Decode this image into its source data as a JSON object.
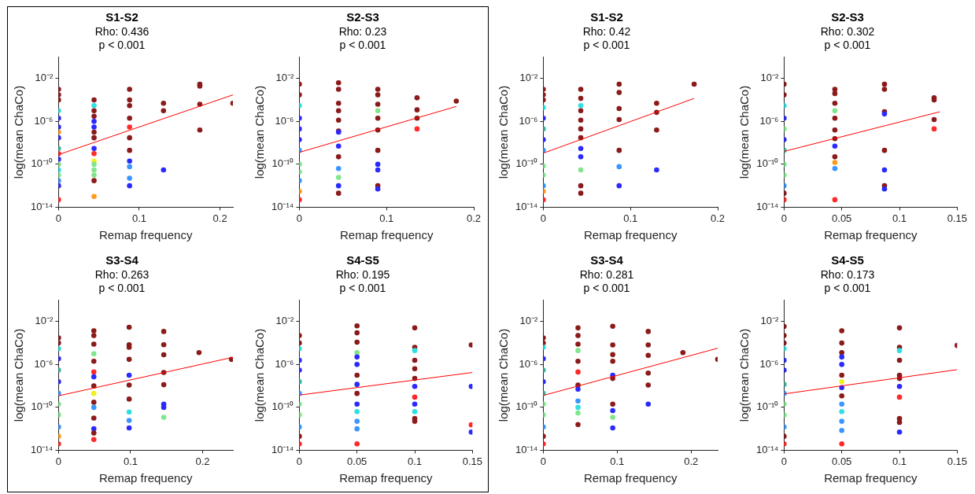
{
  "chart_data": [
    {
      "type": "scatter",
      "title": "S1-S2",
      "annotations": [
        "Rho: 0.436",
        "p < 0.001"
      ],
      "marker": "circle",
      "xlabel": "Remap frequency",
      "ylabel": "log(mean ChaCo)",
      "log": "y",
      "xlim": [
        0,
        0.216
      ],
      "xticks": [
        0,
        0.1,
        0.2
      ],
      "ylim": [
        1e-14,
        1
      ],
      "yticks": [
        {
          "value": 1e-14,
          "label": "10⁻¹⁴"
        },
        {
          "value": 1e-10,
          "label": "10⁻¹⁰"
        },
        {
          "value": 1e-06,
          "label": "10⁻⁶"
        },
        {
          "value": 0.01,
          "label": "10⁻²"
        }
      ],
      "series": [
        {
          "type": "scatter",
          "x": [
            0,
            0,
            0,
            0,
            0,
            0,
            0,
            0,
            0,
            0,
            0,
            0,
            0,
            0,
            0,
            0,
            0,
            0.044,
            0.044,
            0.044,
            0.044,
            0.044,
            0.044,
            0.044,
            0.044,
            0.044,
            0.044,
            0.044,
            0.044,
            0.044,
            0.044,
            0.044,
            0.044,
            0.088,
            0.088,
            0.088,
            0.088,
            0.088,
            0.088,
            0.088,
            0.088,
            0.088,
            0.088,
            0.088,
            0.13,
            0.13,
            0.13,
            0.175,
            0.175,
            0.175,
            0.175,
            0.216
          ],
          "values": [
            0.001,
            0.0003,
            0.0001,
            1e-05,
            2e-06,
            3e-07,
            1e-07,
            3e-08,
            3e-09,
            1e-09,
            3e-10,
            1e-10,
            3e-11,
            1e-11,
            3e-12,
            1e-12,
            5e-14,
            0.0001,
            3e-05,
            1e-05,
            3e-06,
            1e-06,
            3e-07,
            1e-07,
            3e-08,
            3e-09,
            1e-09,
            2e-10,
            1e-10,
            3e-11,
            1e-11,
            3e-12,
            1e-13,
            0.001,
            0.0001,
            3e-05,
            2e-06,
            3e-07,
            3e-08,
            2e-09,
            2e-10,
            6e-11,
            5e-12,
            1e-12,
            5e-05,
            1e-05,
            3e-11,
            0.003,
            0.002,
            4e-05,
            1.6e-07,
            5e-05
          ],
          "colors": [
            "#8b1a1a",
            "#8b1a1a",
            "#8b1a1a",
            "#30e0e0",
            "#2a2aff",
            "#2a2aff",
            "#ff9a1a",
            "#2a2aff",
            "#40b4a0",
            "#ff2a2a",
            "#2a2aff",
            "#80e68c",
            "#30e0e0",
            "#80e68c",
            "#3a96ff",
            "#2a2aff",
            "#ff2a2a",
            "#8b1a1a",
            "#30e0e0",
            "#8b1a1a",
            "#8b1a1a",
            "#2a2aff",
            "#2a2aff",
            "#8b1a1a",
            "#8b1a1a",
            "#2a2aff",
            "#ff2a2a",
            "#f0f020",
            "#80e68c",
            "#80e68c",
            "#80e68c",
            "#8b1a1a",
            "#ff9a1a",
            "#8b1a1a",
            "#8b1a1a",
            "#8b1a1a",
            "#8b1a1a",
            "#ff2a2a",
            "#8b1a1a",
            "#8b1a1a",
            "#2a2aff",
            "#3a96ff",
            "#3a96ff",
            "#2a2aff",
            "#8b1a1a",
            "#8b1a1a",
            "#2a2aff",
            "#8b1a1a",
            "#8b1a1a",
            "#8b1a1a",
            "#8b1a1a",
            "#8b1a1a"
          ]
        },
        {
          "type": "line",
          "marker": "none",
          "color": "#ff0000",
          "x": [
            0,
            0.216
          ],
          "values": [
            8e-10,
            0.0003
          ]
        }
      ]
    },
    {
      "type": "scatter",
      "title": "S2-S3",
      "annotations": [
        "Rho: 0.23",
        "p < 0.001"
      ],
      "marker": "circle",
      "xlabel": "Remap frequency",
      "ylabel": "log(mean ChaCo)",
      "log": "y",
      "xlim": [
        0,
        0.2
      ],
      "xticks": [
        0,
        0.1,
        0.2
      ],
      "ylim": [
        1e-14,
        1
      ],
      "yticks": [
        {
          "value": 1e-14,
          "label": "10⁻¹⁴"
        },
        {
          "value": 1e-10,
          "label": "10⁻¹⁰"
        },
        {
          "value": 1e-06,
          "label": "10⁻⁶"
        },
        {
          "value": 0.01,
          "label": "10⁻²"
        }
      ],
      "series": [
        {
          "type": "scatter",
          "x": [
            0,
            0,
            0,
            0,
            0,
            0,
            0,
            0,
            0,
            0,
            0,
            0,
            0.045,
            0.045,
            0.045,
            0.045,
            0.045,
            0.045,
            0.045,
            0.045,
            0.045,
            0.045,
            0.045,
            0.045,
            0.045,
            0.09,
            0.09,
            0.09,
            0.09,
            0.09,
            0.09,
            0.09,
            0.09,
            0.09,
            0.09,
            0.09,
            0.135,
            0.135,
            0.135,
            0.135,
            0.18
          ],
          "values": [
            0.003,
            0.0003,
            3e-05,
            2e-06,
            2e-07,
            2e-08,
            2e-09,
            1e-10,
            2e-11,
            3e-12,
            3e-13,
            5e-14,
            0.004,
            0.001,
            5e-05,
            1e-05,
            1.3e-06,
            1.3e-07,
            1e-07,
            5e-09,
            5e-10,
            4e-11,
            6e-12,
            1e-12,
            2e-13,
            0.001,
            0.0003,
            4e-05,
            1e-05,
            2e-06,
            1.6e-07,
            2e-09,
            1e-10,
            3e-11,
            1e-12,
            5e-13,
            0.00016,
            1.2e-05,
            2e-06,
            2e-07,
            8e-05
          ],
          "colors": [
            "#8b1a1a",
            "#8b1a1a",
            "#30e0e0",
            "#2a2aff",
            "#2a2aff",
            "#2a2aff",
            "#3a96ff",
            "#80e68c",
            "#80e68c",
            "#3a96ff",
            "#ff9a1a",
            "#ff2a2a",
            "#8b1a1a",
            "#8b1a1a",
            "#8b1a1a",
            "#8b1a1a",
            "#8b1a1a",
            "#8b1a1a",
            "#2a2aff",
            "#2a2aff",
            "#8b1a1a",
            "#3a96ff",
            "#80e68c",
            "#2a2aff",
            "#8b1a1a",
            "#8b1a1a",
            "#8b1a1a",
            "#8b1a1a",
            "#80e68c",
            "#8b1a1a",
            "#8b1a1a",
            "#8b1a1a",
            "#2a2aff",
            "#2a2aff",
            "#8b1a1a",
            "#2a2aff",
            "#8b1a1a",
            "#8b1a1a",
            "#8b1a1a",
            "#ff2a2a",
            "#8b1a1a"
          ]
        },
        {
          "type": "line",
          "marker": "none",
          "color": "#ff0000",
          "x": [
            0,
            0.18
          ],
          "values": [
            1.3e-09,
            2.5e-05
          ]
        }
      ]
    },
    {
      "type": "scatter",
      "title": "S1-S2",
      "annotations": [
        "Rho: 0.42",
        "p < 0.001"
      ],
      "marker": "circle",
      "xlabel": "Remap frequency",
      "ylabel": "log(mean ChaCo)",
      "log": "y",
      "xlim": [
        0,
        0.2
      ],
      "xticks": [
        0,
        0.1,
        0.2
      ],
      "ylim": [
        1e-14,
        1
      ],
      "yticks": [
        {
          "value": 1e-14,
          "label": "10⁻¹⁴"
        },
        {
          "value": 1e-10,
          "label": "10⁻¹⁰"
        },
        {
          "value": 1e-06,
          "label": "10⁻⁶"
        },
        {
          "value": 0.01,
          "label": "10⁻²"
        }
      ],
      "series": [
        {
          "type": "scatter",
          "x": [
            0,
            0,
            0,
            0,
            0,
            0,
            0,
            0,
            0,
            0,
            0,
            0,
            0,
            0.043,
            0.043,
            0.043,
            0.043,
            0.043,
            0.043,
            0.043,
            0.043,
            0.043,
            0.043,
            0.043,
            0.043,
            0.087,
            0.087,
            0.087,
            0.087,
            0.087,
            0.087,
            0.087,
            0.13,
            0.13,
            0.13,
            0.13,
            0.173
          ],
          "values": [
            0.001,
            0.0003,
            0.0001,
            2e-05,
            2e-06,
            2e-07,
            2e-08,
            2e-09,
            7e-11,
            1e-11,
            1e-12,
            3e-13,
            5e-14,
            0.001,
            0.00014,
            3e-05,
            1e-05,
            1.3e-06,
            2e-07,
            3e-08,
            3e-09,
            5e-10,
            3e-11,
            1e-12,
            2e-13,
            0.003,
            0.0005,
            1.6e-05,
            1.5e-06,
            2e-09,
            6e-11,
            1e-12,
            5e-05,
            7e-06,
            1.6e-07,
            3e-11,
            0.003
          ],
          "colors": [
            "#8b1a1a",
            "#8b1a1a",
            "#8b1a1a",
            "#30e0e0",
            "#2a2aff",
            "#40b4a0",
            "#2a2aff",
            "#3a96ff",
            "#80e68c",
            "#80e68c",
            "#3a96ff",
            "#ff9a1a",
            "#ff2a2a",
            "#8b1a1a",
            "#8b1a1a",
            "#30e0e0",
            "#8b1a1a",
            "#8b1a1a",
            "#8b1a1a",
            "#8b1a1a",
            "#2a2aff",
            "#2a2aff",
            "#80e68c",
            "#8b1a1a",
            "#8b1a1a",
            "#8b1a1a",
            "#8b1a1a",
            "#8b1a1a",
            "#8b1a1a",
            "#8b1a1a",
            "#3a96ff",
            "#2a2aff",
            "#8b1a1a",
            "#8b1a1a",
            "#8b1a1a",
            "#2a2aff",
            "#8b1a1a"
          ]
        },
        {
          "type": "line",
          "marker": "none",
          "color": "#ff0000",
          "x": [
            0,
            0.173
          ],
          "values": [
            1.1e-09,
            0.00014
          ]
        }
      ]
    },
    {
      "type": "scatter",
      "title": "S2-S3",
      "annotations": [
        "Rho: 0.302",
        "p < 0.001"
      ],
      "marker": "circle",
      "xlabel": "Remap frequency",
      "ylabel": "log(mean ChaCo)",
      "log": "y",
      "xlim": [
        0,
        0.15
      ],
      "xticks": [
        0,
        0.05,
        0.1,
        0.15
      ],
      "ylim": [
        1e-14,
        1
      ],
      "yticks": [
        {
          "value": 1e-14,
          "label": "10⁻¹⁴"
        },
        {
          "value": 1e-10,
          "label": "10⁻¹⁰"
        },
        {
          "value": 1e-06,
          "label": "10⁻⁶"
        },
        {
          "value": 0.01,
          "label": "10⁻²"
        }
      ],
      "series": [
        {
          "type": "scatter",
          "x": [
            0,
            0,
            0,
            0,
            0,
            0,
            0,
            0,
            0,
            0,
            0,
            0,
            0.044,
            0.044,
            0.044,
            0.044,
            0.044,
            0.044,
            0.044,
            0.044,
            0.044,
            0.044,
            0.044,
            0.044,
            0.087,
            0.087,
            0.087,
            0.087,
            0.087,
            0.087,
            0.087,
            0.087,
            0.13,
            0.13,
            0.13,
            0.13
          ],
          "values": [
            0.003,
            0.0003,
            3e-05,
            2e-06,
            2e-07,
            2e-08,
            2e-09,
            1e-10,
            1e-11,
            1e-12,
            2e-13,
            5e-14,
            0.001,
            0.0004,
            5e-05,
            1e-05,
            2e-06,
            1.6e-07,
            2.5e-08,
            5e-09,
            5e-10,
            1.5e-10,
            4e-11,
            5e-14,
            0.003,
            0.001,
            8e-06,
            5e-06,
            2e-09,
            3e-11,
            1e-12,
            5e-13,
            0.00016,
            0.0001,
            1.5e-06,
            2e-07
          ],
          "colors": [
            "#8b1a1a",
            "#8b1a1a",
            "#30e0e0",
            "#2a2aff",
            "#80e68c",
            "#2a2aff",
            "#40b4a0",
            "#80e68c",
            "#80e68c",
            "#3a96ff",
            "#8b1a1a",
            "#ff2a2a",
            "#8b1a1a",
            "#8b1a1a",
            "#8b1a1a",
            "#80e68c",
            "#8b1a1a",
            "#8b1a1a",
            "#8b1a1a",
            "#2a2aff",
            "#8b1a1a",
            "#ff9a1a",
            "#3a96ff",
            "#ff2a2a",
            "#8b1a1a",
            "#8b1a1a",
            "#8b1a1a",
            "#2a2aff",
            "#8b1a1a",
            "#2a2aff",
            "#8b1a1a",
            "#2a2aff",
            "#8b1a1a",
            "#8b1a1a",
            "#8b1a1a",
            "#ff2a2a"
          ]
        },
        {
          "type": "line",
          "marker": "none",
          "color": "#ff0000",
          "x": [
            0,
            0.135
          ],
          "values": [
            1.6e-09,
            8e-06
          ]
        }
      ]
    },
    {
      "type": "scatter",
      "title": "S3-S4",
      "annotations": [
        "Rho: 0.263",
        "p < 0.001"
      ],
      "marker": "circle",
      "xlabel": "Remap frequency",
      "ylabel": "log(mean ChaCo)",
      "log": "y",
      "xlim": [
        0,
        0.242
      ],
      "xticks": [
        0,
        0.1,
        0.2
      ],
      "ylim": [
        1e-14,
        1
      ],
      "yticks": [
        {
          "value": 1e-14,
          "label": "10⁻¹⁴"
        },
        {
          "value": 1e-10,
          "label": "10⁻¹⁰"
        },
        {
          "value": 1e-06,
          "label": "10⁻⁶"
        },
        {
          "value": 0.01,
          "label": "10⁻²"
        }
      ],
      "series": [
        {
          "type": "scatter",
          "x": [
            0,
            0,
            0,
            0,
            0,
            0,
            0,
            0,
            0,
            0,
            0,
            0,
            0.049,
            0.049,
            0.049,
            0.049,
            0.049,
            0.049,
            0.049,
            0.049,
            0.049,
            0.049,
            0.049,
            0.049,
            0.049,
            0.049,
            0.049,
            0.098,
            0.098,
            0.098,
            0.098,
            0.098,
            0.098,
            0.098,
            0.098,
            0.098,
            0.098,
            0.146,
            0.146,
            0.146,
            0.146,
            0.146,
            0.146,
            0.146,
            0.146,
            0.195,
            0.24
          ],
          "values": [
            0.0003,
            0.0001,
            3e-05,
            3.5e-06,
            3e-07,
            2.5e-08,
            2e-09,
            2e-10,
            2e-11,
            1.5e-12,
            2e-13,
            4e-14,
            0.0014,
            0.0005,
            8e-05,
            1e-05,
            2e-06,
            2e-07,
            7e-08,
            1e-08,
            2e-09,
            3e-10,
            1e-10,
            1e-11,
            1e-12,
            4e-13,
            1e-13,
            0.003,
            7e-05,
            4e-05,
            3e-06,
            1e-07,
            1.2e-08,
            6e-10,
            3.7e-11,
            6e-12,
            1.2e-12,
            0.0012,
            7e-05,
            8e-06,
            1.8e-07,
            1.3e-08,
            2e-10,
            1e-10,
            1.2e-11,
            1.3e-05,
            3e-06
          ],
          "colors": [
            "#8b1a1a",
            "#8b1a1a",
            "#30e0e0",
            "#2a2aff",
            "#40b4a0",
            "#2a2aff",
            "#3a96ff",
            "#80e68c",
            "#80e68c",
            "#3a96ff",
            "#ff9a1a",
            "#ff2a2a",
            "#8b1a1a",
            "#8b1a1a",
            "#8b1a1a",
            "#80e68c",
            "#8b1a1a",
            "#ff2a2a",
            "#2a2aff",
            "#8b1a1a",
            "#f0f020",
            "#8b1a1a",
            "#3a96ff",
            "#8b1a1a",
            "#2a2aff",
            "#8b1a1a",
            "#ff2a2a",
            "#8b1a1a",
            "#8b1a1a",
            "#8b1a1a",
            "#8b1a1a",
            "#2a2aff",
            "#8b1a1a",
            "#8b1a1a",
            "#30e0e0",
            "#3a96ff",
            "#2a2aff",
            "#8b1a1a",
            "#8b1a1a",
            "#8b1a1a",
            "#8b1a1a",
            "#8b1a1a",
            "#2a2aff",
            "#2a2aff",
            "#80e68c",
            "#8b1a1a",
            "#8b1a1a"
          ]
        },
        {
          "type": "line",
          "marker": "none",
          "color": "#ff0000",
          "x": [
            0,
            0.242
          ],
          "values": [
            1.2e-09,
            4.7e-06
          ]
        }
      ]
    },
    {
      "type": "scatter",
      "title": "S4-S5",
      "annotations": [
        "Rho: 0.195",
        "p < 0.001"
      ],
      "marker": "circle",
      "xlabel": "Remap frequency",
      "ylabel": "log(mean ChaCo)",
      "log": "y",
      "xlim": [
        0,
        0.15
      ],
      "xticks": [
        0,
        0.05,
        0.1,
        0.15
      ],
      "ylim": [
        1e-14,
        1
      ],
      "yticks": [
        {
          "value": 1e-14,
          "label": "10⁻¹⁴"
        },
        {
          "value": 1e-10,
          "label": "10⁻¹⁰"
        },
        {
          "value": 1e-06,
          "label": "10⁻⁶"
        },
        {
          "value": 0.01,
          "label": "10⁻²"
        }
      ],
      "series": [
        {
          "type": "scatter",
          "x": [
            0,
            0,
            0,
            0,
            0,
            0,
            0,
            0,
            0,
            0,
            0,
            0,
            0.05,
            0.05,
            0.05,
            0.05,
            0.05,
            0.05,
            0.05,
            0.05,
            0.05,
            0.05,
            0.05,
            0.05,
            0.05,
            0.05,
            0.1,
            0.1,
            0.1,
            0.1,
            0.1,
            0.1,
            0.1,
            0.1,
            0.1,
            0.1,
            0.1,
            0.1,
            0.149,
            0.149,
            0.149,
            0.149
          ],
          "values": [
            0.0005,
            0.0001,
            3e-05,
            2.5e-06,
            3e-07,
            2.5e-08,
            2e-09,
            2e-10,
            2e-11,
            1.5e-12,
            2e-13,
            4e-14,
            0.004,
            0.0009,
            0.00012,
            1.3e-05,
            5e-06,
            1e-06,
            1e-07,
            1.4e-08,
            2e-09,
            2e-10,
            4e-11,
            5e-12,
            1e-12,
            4e-14,
            0.0026,
            4e-05,
            2e-05,
            2.5e-06,
            4e-07,
            5e-08,
            9e-09,
            9e-10,
            2e-10,
            4e-11,
            9e-12,
            5e-12,
            6.6e-05,
            9e-09,
            2.4e-12,
            5e-13
          ],
          "colors": [
            "#8b1a1a",
            "#8b1a1a",
            "#30e0e0",
            "#2a2aff",
            "#2a2aff",
            "#40b4a0",
            "#3a96ff",
            "#80e68c",
            "#80e68c",
            "#3a96ff",
            "#8b1a1a",
            "#ff2a2a",
            "#8b1a1a",
            "#8b1a1a",
            "#8b1a1a",
            "#80e68c",
            "#2a2aff",
            "#2a2aff",
            "#8b1a1a",
            "#2a2aff",
            "#8b1a1a",
            "#2a2aff",
            "#30e0e0",
            "#3a96ff",
            "#3a96ff",
            "#ff2a2a",
            "#8b1a1a",
            "#8b1a1a",
            "#30e0e0",
            "#8b1a1a",
            "#8b1a1a",
            "#8b1a1a",
            "#2a2aff",
            "#ff2a2a",
            "#2a2aff",
            "#30e0e0",
            "#8b1a1a",
            "#8b1a1a",
            "#8b1a1a",
            "#2a2aff",
            "#ff2a2a",
            "#2a2aff"
          ]
        },
        {
          "type": "line",
          "marker": "none",
          "color": "#ff0000",
          "x": [
            0,
            0.15
          ],
          "values": [
            1.4e-09,
            1.8e-07
          ]
        }
      ]
    },
    {
      "type": "scatter",
      "title": "S3-S4",
      "annotations": [
        "Rho: 0.281",
        "p < 0.001"
      ],
      "marker": "circle",
      "xlabel": "Remap frequency",
      "ylabel": "log(mean ChaCo)",
      "log": "y",
      "xlim": [
        0,
        0.236
      ],
      "xticks": [
        0,
        0.1,
        0.2
      ],
      "ylim": [
        1e-14,
        1
      ],
      "yticks": [
        {
          "value": 1e-14,
          "label": "10⁻¹⁴"
        },
        {
          "value": 1e-10,
          "label": "10⁻¹⁰"
        },
        {
          "value": 1e-06,
          "label": "10⁻⁶"
        },
        {
          "value": 0.01,
          "label": "10⁻²"
        }
      ],
      "series": [
        {
          "type": "scatter",
          "x": [
            0,
            0,
            0,
            0,
            0,
            0,
            0,
            0,
            0,
            0,
            0,
            0,
            0.047,
            0.047,
            0.047,
            0.047,
            0.047,
            0.047,
            0.047,
            0.047,
            0.047,
            0.047,
            0.047,
            0.047,
            0.094,
            0.094,
            0.094,
            0.094,
            0.094,
            0.094,
            0.094,
            0.094,
            0.094,
            0.094,
            0.142,
            0.142,
            0.142,
            0.142,
            0.142,
            0.142,
            0.189,
            0.236
          ],
          "values": [
            0.0003,
            0.0001,
            4e-05,
            3.5e-06,
            3e-07,
            2.5e-08,
            2e-09,
            2e-10,
            2e-11,
            1.5e-12,
            2e-13,
            4e-14,
            0.0026,
            0.0005,
            8e-05,
            2e-05,
            2e-06,
            2e-07,
            1.2e-08,
            5e-09,
            4e-10,
            1e-10,
            3e-11,
            2.5e-12,
            0.0037,
            6.6e-05,
            8.5e-06,
            2e-06,
            1e-07,
            5e-08,
            2e-10,
            5e-11,
            1.2e-11,
            1.2e-12,
            0.0012,
            6.6e-05,
            7e-06,
            1.6e-07,
            1.2e-08,
            2e-10,
            1.3e-05,
            3e-06
          ],
          "colors": [
            "#8b1a1a",
            "#8b1a1a",
            "#30e0e0",
            "#2a2aff",
            "#40b4a0",
            "#2a2aff",
            "#40b4a0",
            "#80e68c",
            "#80e68c",
            "#3a96ff",
            "#8b1a1a",
            "#ff2a2a",
            "#8b1a1a",
            "#8b1a1a",
            "#8b1a1a",
            "#80e68c",
            "#8b1a1a",
            "#ff2a2a",
            "#8b1a1a",
            "#2a2aff",
            "#3a96ff",
            "#30e0e0",
            "#80e68c",
            "#8b1a1a",
            "#8b1a1a",
            "#8b1a1a",
            "#8b1a1a",
            "#8b1a1a",
            "#2a2aff",
            "#8b1a1a",
            "#8b1a1a",
            "#2a2aff",
            "#80e68c",
            "#2a2aff",
            "#8b1a1a",
            "#8b1a1a",
            "#8b1a1a",
            "#8b1a1a",
            "#8b1a1a",
            "#2a2aff",
            "#8b1a1a",
            "#8b1a1a"
          ]
        },
        {
          "type": "line",
          "marker": "none",
          "color": "#ff0000",
          "x": [
            0,
            0.236
          ],
          "values": [
            1.3e-09,
            3.3e-05
          ]
        }
      ]
    },
    {
      "type": "scatter",
      "title": "S4-S5",
      "annotations": [
        "Rho: 0.173",
        "p < 0.001"
      ],
      "marker": "circle",
      "xlabel": "Remap frequency",
      "ylabel": "log(mean ChaCo)",
      "log": "y",
      "xlim": [
        0,
        0.15
      ],
      "xticks": [
        0,
        0.05,
        0.1,
        0.15
      ],
      "ylim": [
        1e-14,
        1
      ],
      "yticks": [
        {
          "value": 1e-14,
          "label": "10⁻¹⁴"
        },
        {
          "value": 1e-10,
          "label": "10⁻¹⁰"
        },
        {
          "value": 1e-06,
          "label": "10⁻⁶"
        },
        {
          "value": 0.01,
          "label": "10⁻²"
        }
      ],
      "series": [
        {
          "type": "scatter",
          "x": [
            0,
            0,
            0,
            0,
            0,
            0,
            0,
            0,
            0,
            0,
            0,
            0,
            0,
            0.05,
            0.05,
            0.05,
            0.05,
            0.05,
            0.05,
            0.05,
            0.05,
            0.05,
            0.05,
            0.05,
            0.05,
            0.05,
            0.05,
            0.1,
            0.1,
            0.1,
            0.1,
            0.1,
            0.1,
            0.1,
            0.1,
            0.1,
            0.1,
            0.1,
            0.15
          ],
          "values": [
            0.0035,
            0.0005,
            0.0001,
            3e-05,
            2.5e-06,
            3e-07,
            1.4e-08,
            2e-09,
            2e-10,
            2e-11,
            1.5e-12,
            2e-13,
            4e-14,
            0.0014,
            0.0001,
            1.3e-05,
            5e-06,
            1e-06,
            1e-07,
            2.5e-08,
            7e-09,
            1.2e-09,
            2e-10,
            4e-11,
            5e-12,
            7e-13,
            4e-14,
            0.0026,
            4e-05,
            2e-05,
            2.5e-06,
            1e-07,
            5e-08,
            9e-09,
            9e-10,
            9e-12,
            4e-12,
            5e-13,
            6e-05
          ],
          "colors": [
            "#8b1a1a",
            "#8b1a1a",
            "#8b1a1a",
            "#30e0e0",
            "#2a2aff",
            "#2a2aff",
            "#40b4a0",
            "#3a96ff",
            "#80e68c",
            "#80e68c",
            "#3a96ff",
            "#8b1a1a",
            "#ff2a2a",
            "#8b1a1a",
            "#8b1a1a",
            "#8b1a1a",
            "#2a2aff",
            "#2a2aff",
            "#8b1a1a",
            "#f0f020",
            "#2a2aff",
            "#8b1a1a",
            "#3a96ff",
            "#30e0e0",
            "#3a96ff",
            "#3a96ff",
            "#ff2a2a",
            "#8b1a1a",
            "#8b1a1a",
            "#30e0e0",
            "#8b1a1a",
            "#8b1a1a",
            "#8b1a1a",
            "#2a2aff",
            "#ff2a2a",
            "#8b1a1a",
            "#8b1a1a",
            "#2a2aff",
            "#8b1a1a"
          ]
        },
        {
          "type": "line",
          "marker": "none",
          "color": "#ff0000",
          "x": [
            0,
            0.15
          ],
          "values": [
            1.8e-09,
            3.3e-07
          ]
        }
      ]
    }
  ]
}
